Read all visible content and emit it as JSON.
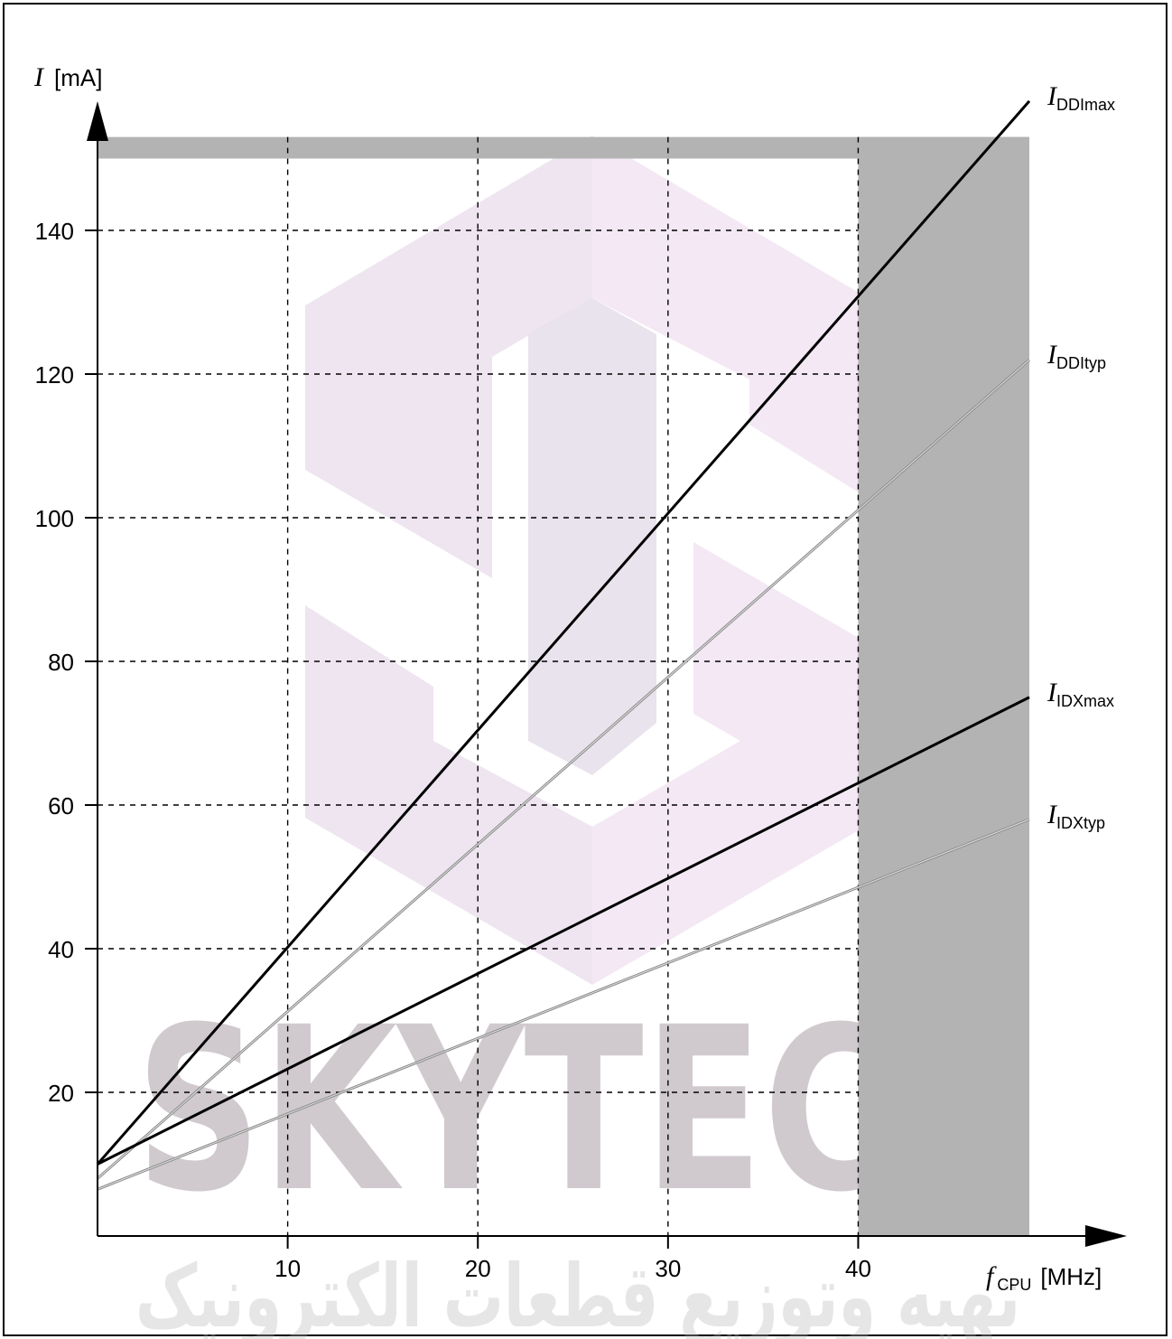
{
  "chart_data": {
    "type": "line",
    "xlabel_symbol": "f",
    "xlabel_subscript": "CPU",
    "xlabel_unit": "[MHz]",
    "ylabel_symbol": "I",
    "ylabel_unit": "[mA]",
    "xlim": [
      0,
      49
    ],
    "ylim": [
      0,
      157
    ],
    "x_ticks": [
      10,
      20,
      30,
      40
    ],
    "y_ticks": [
      20,
      40,
      60,
      80,
      100,
      120,
      140
    ],
    "grid": true,
    "shaded_regions": [
      {
        "x": [
          40,
          49
        ],
        "y": [
          0,
          153
        ]
      },
      {
        "x": [
          0,
          49
        ],
        "y": [
          150,
          153
        ]
      }
    ],
    "series": [
      {
        "name": "DDImax",
        "symbol": "I",
        "subscript": "DDImax",
        "style": "max",
        "x": [
          0,
          49
        ],
        "y": [
          10,
          158
        ]
      },
      {
        "name": "DDItyp",
        "symbol": "I",
        "subscript": "DDItyp",
        "style": "typ",
        "x": [
          0,
          49
        ],
        "y": [
          8,
          122
        ]
      },
      {
        "name": "IDXmax",
        "symbol": "I",
        "subscript": "IDXmax",
        "style": "max",
        "x": [
          0,
          49
        ],
        "y": [
          10,
          75
        ]
      },
      {
        "name": "IDXtyp",
        "symbol": "I",
        "subscript": "IDXtyp",
        "style": "typ",
        "x": [
          0,
          49
        ],
        "y": [
          6.5,
          58
        ]
      }
    ]
  },
  "watermark": {
    "text": "SKYTECH",
    "subtext": "تهیه وتوزیع قطعات الکترونیک",
    "colors": {
      "logo_a": "#ece2ee",
      "logo_b": "#f2e6f3"
    }
  }
}
